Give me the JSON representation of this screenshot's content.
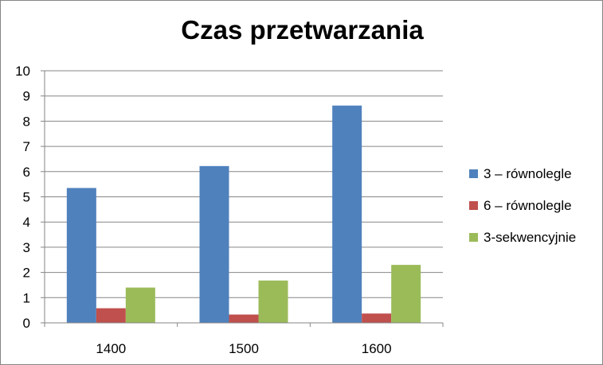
{
  "chart_data": {
    "type": "bar",
    "title": "Czas przetwarzania",
    "categories": [
      "1400",
      "1500",
      "1600"
    ],
    "series": [
      {
        "name": "3 – równolegle",
        "values": [
          5.35,
          6.22,
          8.62
        ],
        "color": "#4F81BD"
      },
      {
        "name": "6 – równolegle",
        "values": [
          0.58,
          0.33,
          0.37
        ],
        "color": "#C0504D"
      },
      {
        "name": "3-sekwencyjnie",
        "values": [
          1.4,
          1.68,
          2.3
        ],
        "color": "#9BBB59"
      }
    ],
    "ylim": [
      0,
      10
    ],
    "yticks": [
      "0",
      "1",
      "2",
      "3",
      "4",
      "5",
      "6",
      "7",
      "8",
      "9",
      "10"
    ],
    "grid": true,
    "legend_position": "right"
  }
}
